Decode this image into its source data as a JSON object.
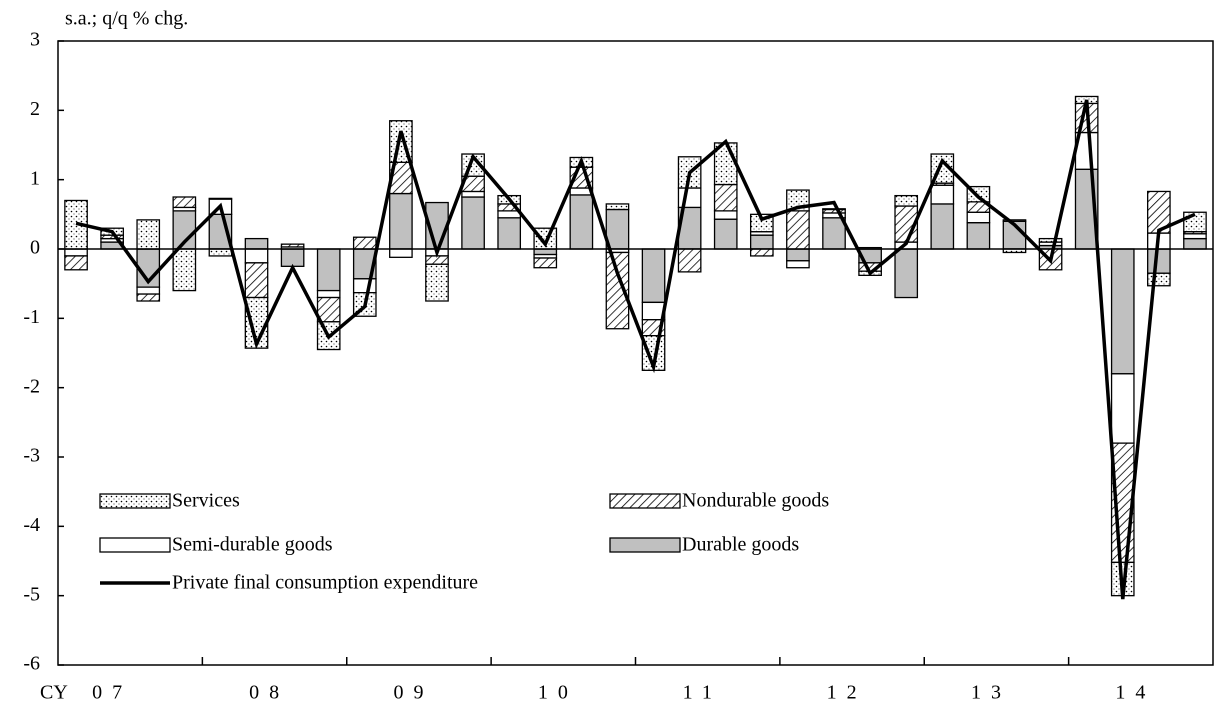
{
  "chart_data": {
    "type": "bar",
    "stacked": true,
    "ylabel": "s.a.; q/q % chg.",
    "x_prefix": "CY",
    "categories": [
      null,
      "07",
      null,
      null,
      null,
      "08",
      null,
      null,
      null,
      "09",
      null,
      null,
      null,
      "10",
      null,
      null,
      null,
      "11",
      null,
      null,
      null,
      "12",
      null,
      null,
      null,
      "13",
      null,
      null,
      null,
      "14",
      null,
      null
    ],
    "ylim": [
      -6,
      3
    ],
    "yticks": [
      -6,
      -5,
      -4,
      -3,
      -2,
      -1,
      0,
      1,
      2,
      3
    ],
    "grid": false,
    "series": [
      {
        "name": "Services",
        "color": "#ffffff",
        "fill": "dots",
        "values": [
          0.7,
          0.1,
          0.42,
          -0.6,
          -0.1,
          -0.73,
          0,
          -0.4,
          -0.34,
          0.6,
          -0.53,
          0.32,
          0.12,
          0.3,
          0.14,
          0.08,
          -0.5,
          0.45,
          0.6,
          0.25,
          0.3,
          0.01,
          -0.06,
          0.15,
          0.42,
          0.22,
          -0.05,
          0.05,
          0.1,
          -0.48,
          -0.18,
          0.28
        ]
      },
      {
        "name": "Nondurable goods",
        "color": "#ffffff",
        "fill": "hatch",
        "values": [
          -0.2,
          0.05,
          -0.1,
          0.15,
          0.01,
          -0.5,
          0.04,
          -0.35,
          0.17,
          0.45,
          -0.12,
          0.22,
          0.1,
          -0.14,
          0.3,
          -1.1,
          -0.23,
          -0.33,
          0.38,
          -0.1,
          0.55,
          0.05,
          -0.12,
          0.52,
          0.03,
          0.15,
          0,
          -0.3,
          0.42,
          -1.72,
          0.6,
          0.03
        ]
      },
      {
        "name": "Semi-durable goods",
        "color": "#ffffff",
        "fill": "solid",
        "values": [
          -0.1,
          0.05,
          -0.1,
          0.05,
          0.22,
          -0.2,
          0.03,
          -0.1,
          -0.2,
          -0.12,
          -0.1,
          0.08,
          0.1,
          -0.05,
          0.1,
          -0.05,
          -0.25,
          0.28,
          0.12,
          0.05,
          -0.1,
          0.07,
          0.02,
          0.1,
          0.27,
          0.15,
          0.02,
          0.05,
          0.53,
          -1.0,
          0.23,
          0.07
        ]
      },
      {
        "name": "Durable goods",
        "color": "#c0c0c0",
        "fill": "solid",
        "values": [
          0,
          0.1,
          -0.55,
          0.55,
          0.5,
          0.15,
          -0.25,
          -0.6,
          -0.43,
          0.8,
          0.67,
          0.75,
          0.45,
          -0.08,
          0.78,
          0.57,
          -0.77,
          0.6,
          0.43,
          0.2,
          -0.17,
          0.45,
          -0.2,
          -0.7,
          0.65,
          0.38,
          0.4,
          0.05,
          1.15,
          -1.8,
          -0.35,
          0.15
        ]
      },
      {
        "name": "Private final consumption expenditure",
        "color": "#000000",
        "type": "line",
        "values": [
          0.37,
          0.25,
          -0.47,
          0.1,
          0.62,
          -1.37,
          -0.27,
          -1.27,
          -0.83,
          1.7,
          -0.05,
          1.33,
          0.72,
          0.07,
          1.27,
          -0.35,
          -1.7,
          1.1,
          1.55,
          0.43,
          0.6,
          0.67,
          -0.35,
          0.08,
          1.27,
          0.75,
          0.35,
          -0.17,
          2.15,
          -5.05,
          0.27,
          0.5
        ]
      }
    ]
  }
}
